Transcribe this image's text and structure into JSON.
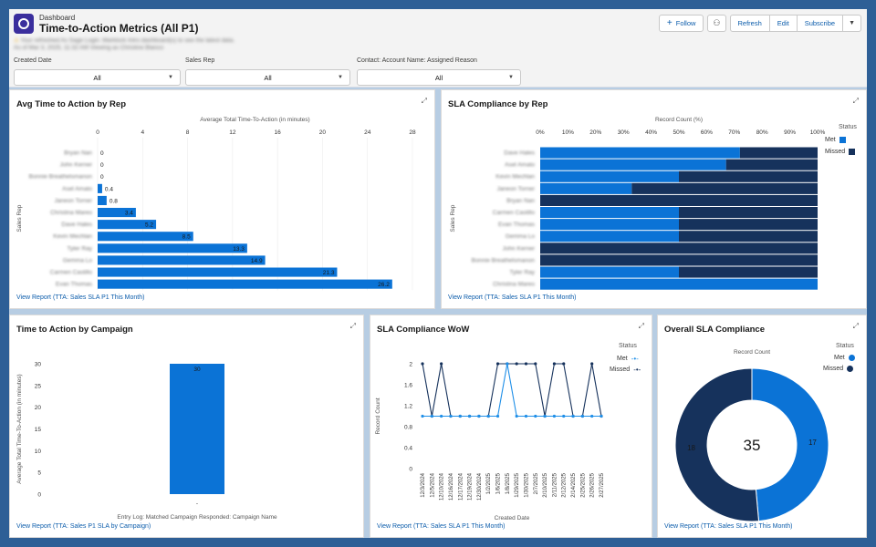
{
  "header": {
    "breadcrumb": "Dashboard",
    "title": "Time-to-Action Metrics (All P1)",
    "notice": "Your refreshed As Sage Login: Marklock Intro dashboard(s) to see the latest data.",
    "notice_sub": "As of Mar 3, 2025, 11:32 AM Viewing as Christine Blanco",
    "buttons": {
      "follow": "Follow",
      "refresh": "Refresh",
      "edit": "Edit",
      "subscribe": "Subscribe"
    }
  },
  "filters": [
    {
      "label": "Created Date",
      "value": "All"
    },
    {
      "label": "Sales Rep",
      "value": "All"
    },
    {
      "label": "Contact: Account Name: Assigned Reason",
      "value": "All"
    }
  ],
  "colors": {
    "met": "#0b73d6",
    "missed": "#16325c",
    "link": "#0b5cab"
  },
  "cards": {
    "avg_time": {
      "title": "Avg Time to Action by Rep",
      "view_report": "View Report (TTA: Sales SLA P1 This Month)"
    },
    "sla_rep": {
      "title": "SLA Compliance by Rep",
      "view_report": "View Report (TTA: Sales SLA P1 This Month)"
    },
    "campaign": {
      "title": "Time to Action by Campaign",
      "view_report": "View Report (TTA: Sales P1 SLA by Campaign)"
    },
    "wow": {
      "title": "SLA Compliance WoW",
      "view_report": "View Report (TTA: Sales SLA P1 This Month)"
    },
    "overall": {
      "title": "Overall SLA Compliance",
      "view_report": "View Report (TTA: Sales SLA P1 This Month)"
    }
  },
  "chart_data": [
    {
      "id": "avg_time",
      "type": "bar",
      "orientation": "horizontal",
      "title": "Avg Time to Action by Rep",
      "xlabel": "Average Total Time-To-Action (in minutes)",
      "ylabel": "Sales Rep",
      "xlim": [
        0,
        28
      ],
      "xticks": [
        "0",
        "4",
        "8",
        "12",
        "16",
        "20",
        "24",
        "28"
      ],
      "categories": [
        "Bryan Nan",
        "John Kerner",
        "Bonnie Breathelsmanon",
        "Asel Amato",
        "Janeon Torner",
        "Christina Mareo",
        "Dave Hales",
        "Kevin Mechlan",
        "Tyler Ray",
        "Gemma Lo",
        "Carmen Castillo",
        "Evan Thomas"
      ],
      "values": [
        0,
        0,
        0,
        0.4,
        0.8,
        3.4,
        5.2,
        8.5,
        13.3,
        14.9,
        21.3,
        26.2
      ],
      "value_labels": [
        "0",
        "0",
        "0",
        "0.4",
        "0.8",
        "3.4",
        "5.2",
        "8.5",
        "13.3",
        "14.9",
        "21.3",
        "26.2"
      ]
    },
    {
      "id": "sla_rep",
      "type": "bar",
      "orientation": "horizontal",
      "stacked": "percent",
      "title": "SLA Compliance by Rep",
      "xlabel": "Record Count (%)",
      "ylabel": "Sales Rep",
      "xticks": [
        "0%",
        "10%",
        "20%",
        "30%",
        "40%",
        "50%",
        "60%",
        "70%",
        "80%",
        "90%",
        "100%"
      ],
      "legend_title": "Status",
      "categories": [
        "Dave Hales",
        "Asel Amato",
        "Kevin Mechlan",
        "Janeon Torner",
        "Bryan Nan",
        "Carmen Castillo",
        "Evan Thomas",
        "Gemma Lo",
        "John Kerner",
        "Bonnie Breathelsmanon",
        "Tyler Ray",
        "Christina Mareo"
      ],
      "series": [
        {
          "name": "Met",
          "values": [
            72,
            67,
            50,
            33,
            0,
            50,
            50,
            50,
            0,
            0,
            50,
            100
          ]
        },
        {
          "name": "Missed",
          "values": [
            28,
            33,
            50,
            67,
            100,
            50,
            50,
            50,
            100,
            100,
            50,
            0
          ]
        }
      ]
    },
    {
      "id": "campaign",
      "type": "bar",
      "title": "Time to Action by Campaign",
      "xlabel": "Entry Log: Matched Campaign Responded: Campaign Name",
      "ylabel": "Average Total Time-To-Action (in minutes)",
      "ylim": [
        0,
        30
      ],
      "yticks": [
        "0",
        "5",
        "10",
        "15",
        "20",
        "25",
        "30"
      ],
      "categories": [
        "-"
      ],
      "values": [
        30
      ],
      "value_labels": [
        "30"
      ]
    },
    {
      "id": "wow",
      "type": "line",
      "title": "SLA Compliance WoW",
      "xlabel": "Created Date",
      "ylabel": "Record Count",
      "ylim": [
        0,
        2
      ],
      "yticks": [
        "0",
        "0.4",
        "0.8",
        "1.2",
        "1.6",
        "2"
      ],
      "legend_title": "Status",
      "x": [
        "12/3/2024",
        "12/5/2024",
        "12/10/2024",
        "12/16/2024",
        "12/17/2024",
        "12/19/2024",
        "12/30/2024",
        "1/2/2025",
        "1/6/2025",
        "1/8/2025",
        "1/29/2025",
        "1/30/2025",
        "2/7/2025",
        "2/10/2025",
        "2/11/2025",
        "2/12/2025",
        "2/14/2025",
        "2/25/2025",
        "2/26/2025",
        "2/27/2025"
      ],
      "series": [
        {
          "name": "Met",
          "values": [
            1,
            1,
            1,
            1,
            1,
            1,
            1,
            1,
            1,
            2,
            1,
            1,
            1,
            1,
            1,
            1,
            1,
            1,
            1,
            1
          ]
        },
        {
          "name": "Missed",
          "values": [
            2,
            1,
            2,
            1,
            1,
            1,
            1,
            1,
            2,
            2,
            2,
            2,
            2,
            1,
            2,
            2,
            1,
            1,
            2,
            1
          ]
        }
      ]
    },
    {
      "id": "overall",
      "type": "pie",
      "donut": true,
      "title": "Overall SLA Compliance",
      "subtitle": "Record Count",
      "center_label": "35",
      "legend_title": "Status",
      "categories": [
        "Met",
        "Missed"
      ],
      "values": [
        17,
        18
      ]
    }
  ]
}
